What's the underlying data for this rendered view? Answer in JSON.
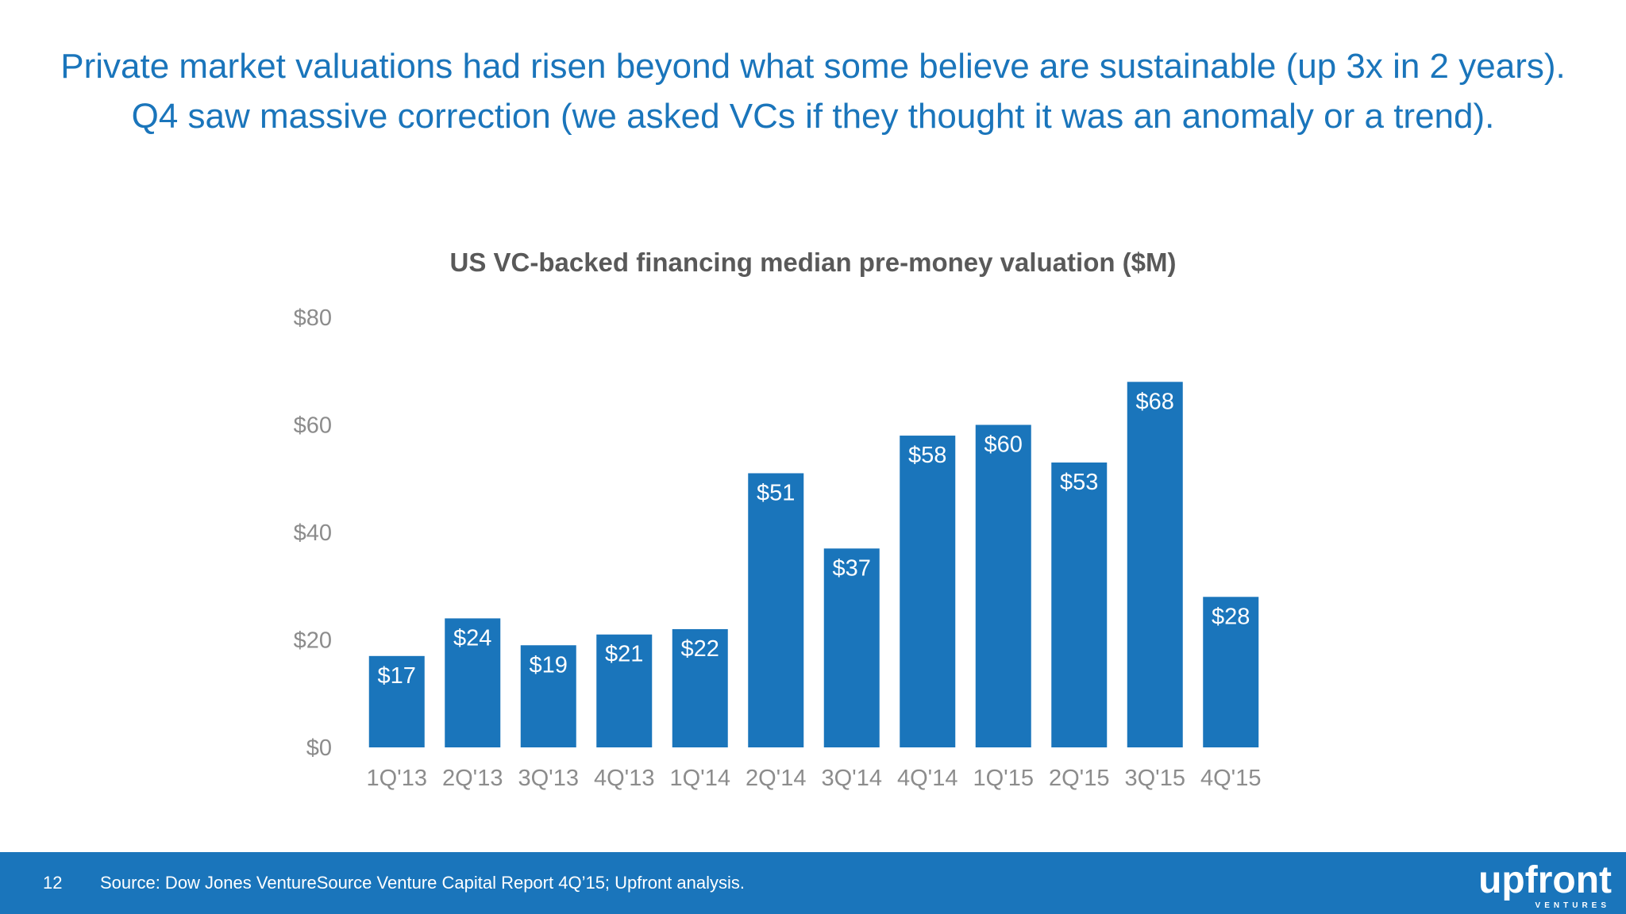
{
  "headline": {
    "line1": "Private market valuations had risen beyond what some believe are sustainable (up 3x in 2 years).",
    "line2": "Q4 saw massive correction (we asked VCs if they thought it was an anomaly or a trend)."
  },
  "footer": {
    "page_number": "12",
    "source": "Source: Dow Jones VentureSource Venture Capital Report 4Q’15; Upfront analysis.",
    "logo_word": "upfront",
    "logo_sub": "VENTURES"
  },
  "colors": {
    "accent": "#1a75bb",
    "title_gray": "#595959",
    "tick_gray": "#8c8c8c"
  },
  "chart_data": {
    "type": "bar",
    "title": "US VC-backed financing median pre-money valuation ($M)",
    "xlabel": "",
    "ylabel": "",
    "categories": [
      "1Q'13",
      "2Q'13",
      "3Q'13",
      "4Q'13",
      "1Q'14",
      "2Q'14",
      "3Q'14",
      "4Q'14",
      "1Q'15",
      "2Q'15",
      "3Q'15",
      "4Q'15"
    ],
    "values": [
      17,
      24,
      19,
      21,
      22,
      51,
      37,
      58,
      60,
      53,
      68,
      28
    ],
    "data_labels": [
      "$17",
      "$24",
      "$19",
      "$21",
      "$22",
      "$51",
      "$37",
      "$58",
      "$60",
      "$53",
      "$68",
      "$28"
    ],
    "y_ticks": [
      0,
      20,
      40,
      60,
      80
    ],
    "y_tick_labels": [
      "$0",
      "$20",
      "$40",
      "$60",
      "$80"
    ],
    "ylim": [
      0,
      80
    ],
    "grid": false,
    "legend": "none"
  }
}
